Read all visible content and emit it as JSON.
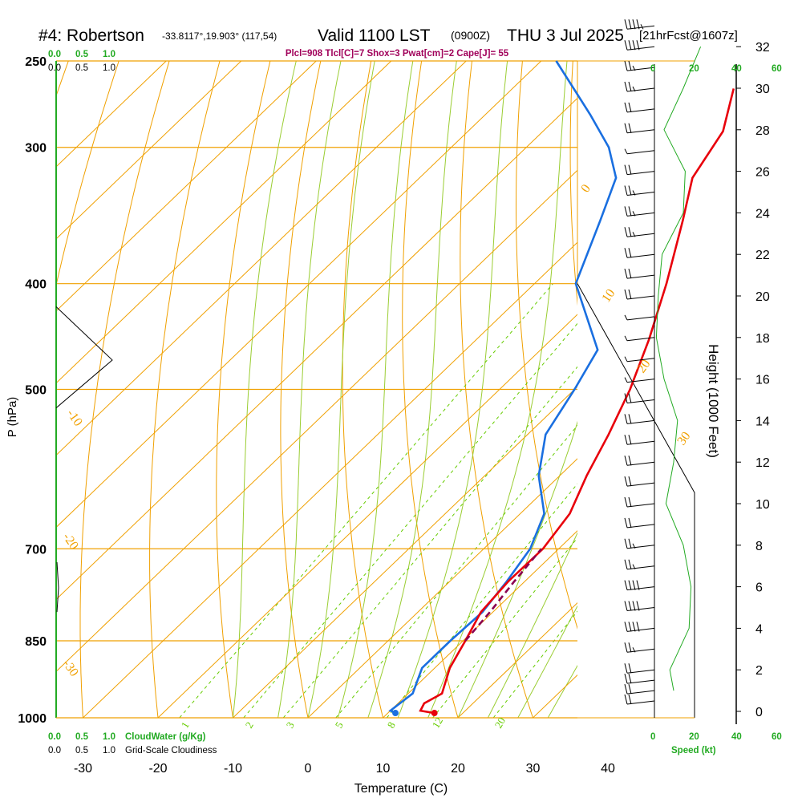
{
  "header": {
    "station": "#4: Robertson",
    "coords": "-33.8117°,19.903° (117,54)",
    "valid": "Valid 1100 LST",
    "zulu": "(0900Z)",
    "date": "THU 3 Jul 2025",
    "forecast": "[21hrFcst@1607z]",
    "params": "Plcl=908 Tlcl[C]=7 Shox=3 Pwat[cm]=2 Cape[J]= 55"
  },
  "scales": {
    "cloudwater_top": [
      "0.0",
      "0.5",
      "1.0"
    ],
    "cloudiness_top": [
      "0.0",
      "0.5",
      "1.0"
    ],
    "cloudwater_bottom": [
      "0.0",
      "0.5",
      "1.0"
    ],
    "cloudwater_label": "CloudWater (g/Kg)",
    "cloudiness_bottom": [
      "0.0",
      "0.5",
      "1.0"
    ],
    "cloudiness_label": "Grid-Scale Cloudiness",
    "speed_ticks": [
      "0",
      "20",
      "40",
      "60"
    ],
    "speed_label": "Speed (kt)"
  },
  "axes": {
    "ylabel": "P (hPa)",
    "xlabel": "Temperature (C)",
    "height_label": "Height (1000 Feet)",
    "pressure_ticks": [
      "250",
      "300",
      "400",
      "500",
      "700",
      "850",
      "1000"
    ],
    "temp_ticks": [
      "-30",
      "-20",
      "-10",
      "0",
      "10",
      "20",
      "30",
      "40"
    ],
    "height_ticks": [
      "0",
      "2",
      "4",
      "6",
      "8",
      "10",
      "12",
      "14",
      "16",
      "18",
      "20",
      "22",
      "24",
      "26",
      "28",
      "30",
      "32"
    ]
  },
  "colors": {
    "temperature": "#e8000b",
    "dewpoint": "#1a6fe0",
    "parcel": "#8b0050",
    "isobar": "#f0a000",
    "dry_adiabat": "#f0a000",
    "moist_adiabat": "#9acd32",
    "mixing_ratio": "#66cc00",
    "wind_speed": "#22aa22",
    "header_params": "#a0005a"
  },
  "chart_data": {
    "type": "skew-t",
    "pressure_levels_hPa": [
      250,
      300,
      400,
      500,
      700,
      850,
      1000
    ],
    "temperature_range_C": [
      -34,
      52
    ],
    "temperature_profile": [
      {
        "p": 990,
        "t": 16.2
      },
      {
        "p": 985,
        "t": 14.0
      },
      {
        "p": 970,
        "t": 13.5
      },
      {
        "p": 950,
        "t": 14.5
      },
      {
        "p": 900,
        "t": 12.0
      },
      {
        "p": 850,
        "t": 10.3
      },
      {
        "p": 800,
        "t": 8.4
      },
      {
        "p": 750,
        "t": 7.8
      },
      {
        "p": 700,
        "t": 7.9
      },
      {
        "p": 650,
        "t": 6.6
      },
      {
        "p": 600,
        "t": 3.6
      },
      {
        "p": 550,
        "t": 0.8
      },
      {
        "p": 500,
        "t": -2.6
      },
      {
        "p": 450,
        "t": -7.0
      },
      {
        "p": 400,
        "t": -12.4
      },
      {
        "p": 350,
        "t": -19.0
      },
      {
        "p": 320,
        "t": -23.6
      },
      {
        "p": 290,
        "t": -26.0
      },
      {
        "p": 265,
        "t": -30.5
      }
    ],
    "dewpoint_profile": [
      {
        "p": 990,
        "t": 11.0
      },
      {
        "p": 985,
        "t": 10.0
      },
      {
        "p": 950,
        "t": 10.6
      },
      {
        "p": 900,
        "t": 8.3
      },
      {
        "p": 850,
        "t": 8.3
      },
      {
        "p": 800,
        "t": 8.6
      },
      {
        "p": 750,
        "t": 7.6
      },
      {
        "p": 700,
        "t": 6.2
      },
      {
        "p": 650,
        "t": 3.2
      },
      {
        "p": 600,
        "t": -2.8
      },
      {
        "p": 550,
        "t": -7.6
      },
      {
        "p": 500,
        "t": -10.0
      },
      {
        "p": 460,
        "t": -12.4
      },
      {
        "p": 400,
        "t": -24.5
      },
      {
        "p": 350,
        "t": -30.0
      },
      {
        "p": 320,
        "t": -33.8
      },
      {
        "p": 300,
        "t": -39.0
      },
      {
        "p": 280,
        "t": -46.0
      },
      {
        "p": 250,
        "t": -58.0
      }
    ],
    "parcel_profile": [
      {
        "p": 850,
        "t": 10.3
      },
      {
        "p": 800,
        "t": 9.6
      },
      {
        "p": 750,
        "t": 8.6
      },
      {
        "p": 700,
        "t": 7.7
      }
    ],
    "surface_temperature_C": 16.2,
    "surface_dewpoint_C": 11.0,
    "dry_adiabat_labels": [
      "30",
      "20",
      "10",
      "0",
      "-10",
      "-20",
      "-30"
    ],
    "dry_adiabat_values_C": [
      30,
      20,
      10,
      0,
      -10,
      -20,
      -30
    ],
    "mixing_ratio_labels": [
      "1",
      "2",
      "3",
      "5",
      "8",
      "12",
      "20"
    ],
    "isotherm_labels": [
      "10",
      "0",
      "-10",
      "-20",
      "-30"
    ],
    "wind_speed_profile_kt": [
      {
        "h": 1,
        "spd": 10
      },
      {
        "h": 2,
        "spd": 8
      },
      {
        "h": 4,
        "spd": 18
      },
      {
        "h": 6,
        "spd": 19
      },
      {
        "h": 8,
        "spd": 15
      },
      {
        "h": 10,
        "spd": 6
      },
      {
        "h": 12,
        "spd": 10
      },
      {
        "h": 14,
        "spd": 12
      },
      {
        "h": 16,
        "spd": 5
      },
      {
        "h": 18,
        "spd": 1
      },
      {
        "h": 20,
        "spd": 2
      },
      {
        "h": 22,
        "spd": 4
      },
      {
        "h": 24,
        "spd": 15
      },
      {
        "h": 26,
        "spd": 16
      },
      {
        "h": 28,
        "spd": 5
      },
      {
        "h": 30,
        "spd": 15
      },
      {
        "h": 32,
        "spd": 24
      }
    ],
    "wind_barb_heights_kft": [
      0.5,
      1,
      1.5,
      2,
      3,
      4,
      5,
      6,
      7,
      8,
      9,
      10,
      11,
      12,
      13,
      14,
      15,
      16,
      17,
      18,
      19,
      20,
      21,
      22,
      23,
      24,
      25,
      26,
      27,
      28,
      29,
      30,
      31,
      32,
      33
    ],
    "wind_barb_speeds_kt": [
      10,
      10,
      10,
      9,
      15,
      20,
      20,
      20,
      15,
      15,
      10,
      10,
      10,
      10,
      10,
      10,
      10,
      5,
      5,
      5,
      5,
      10,
      10,
      10,
      15,
      15,
      15,
      10,
      5,
      10,
      10,
      15,
      15,
      20,
      25
    ]
  }
}
